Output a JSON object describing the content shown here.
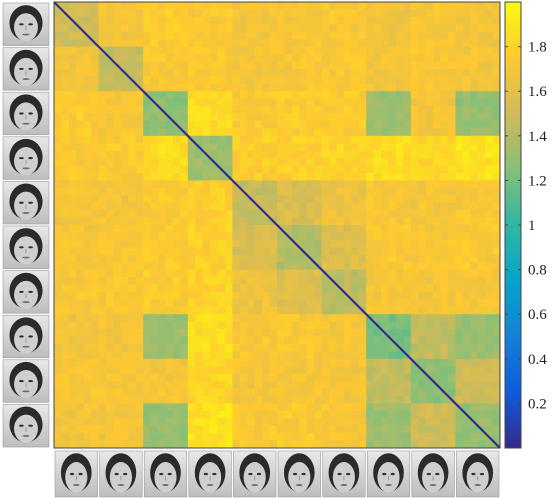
{
  "chart_data": {
    "type": "heatmap",
    "title": "",
    "xlabel": "",
    "ylabel": "",
    "subjects": 10,
    "x_tick_labels": [
      "face-01",
      "face-02",
      "face-03",
      "face-04",
      "face-05",
      "face-06",
      "face-07",
      "face-08",
      "face-09",
      "face-10"
    ],
    "y_tick_labels": [
      "face-01",
      "face-02",
      "face-03",
      "face-04",
      "face-05",
      "face-06",
      "face-07",
      "face-08",
      "face-09",
      "face-10"
    ],
    "colorbar": {
      "range": [
        0,
        2
      ],
      "ticks": [
        0.2,
        0.4,
        0.6,
        0.8,
        1,
        1.2,
        1.4,
        1.6,
        1.8
      ],
      "colormap": "parula",
      "colors": [
        "#352a87",
        "#0f5cdd",
        "#1481d6",
        "#06a4ca",
        "#2eb7a4",
        "#87bf77",
        "#d1bb59",
        "#fec832",
        "#f9fb0e"
      ]
    },
    "matrix": [
      [
        0.0,
        1.7,
        1.76,
        1.74,
        1.7,
        1.71,
        1.72,
        1.68,
        1.71,
        1.69
      ],
      [
        1.7,
        0.0,
        1.73,
        1.75,
        1.7,
        1.72,
        1.73,
        1.69,
        1.72,
        1.7
      ],
      [
        1.76,
        1.73,
        0.0,
        1.85,
        1.75,
        1.76,
        1.76,
        1.32,
        1.7,
        1.3
      ],
      [
        1.74,
        1.75,
        1.85,
        0.0,
        1.78,
        1.79,
        1.8,
        1.85,
        1.82,
        1.88
      ],
      [
        1.7,
        1.7,
        1.75,
        1.78,
        0.0,
        1.55,
        1.66,
        1.72,
        1.7,
        1.73
      ],
      [
        1.71,
        1.72,
        1.76,
        1.79,
        1.55,
        0.0,
        1.57,
        1.73,
        1.71,
        1.74
      ],
      [
        1.72,
        1.73,
        1.76,
        1.8,
        1.66,
        1.57,
        0.0,
        1.7,
        1.7,
        1.71
      ],
      [
        1.68,
        1.69,
        1.32,
        1.85,
        1.72,
        1.73,
        1.7,
        0.0,
        1.45,
        1.32
      ],
      [
        1.71,
        1.72,
        1.7,
        1.82,
        1.7,
        1.71,
        1.7,
        1.45,
        0.0,
        1.5
      ],
      [
        1.69,
        1.7,
        1.3,
        1.88,
        1.73,
        1.74,
        1.71,
        1.32,
        1.5,
        0.0
      ]
    ],
    "within_subject_values": [
      1.5,
      1.45,
      1.28,
      1.32,
      1.45,
      1.4,
      1.42,
      1.2,
      1.28,
      1.3
    ],
    "grid": false,
    "legend": "colorbar-right"
  }
}
